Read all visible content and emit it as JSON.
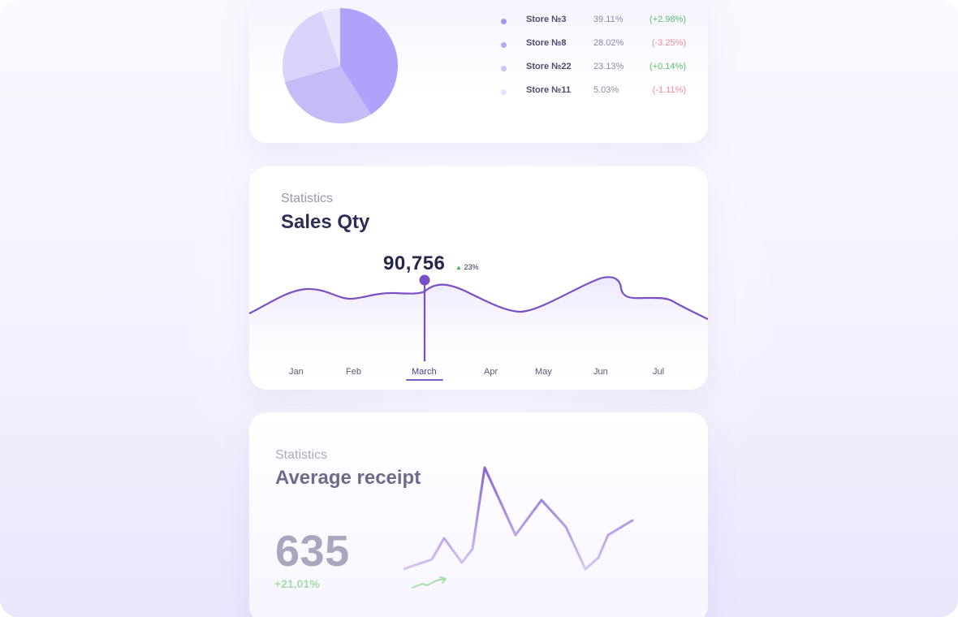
{
  "pie_card": {
    "chart_data": {
      "type": "pie",
      "slices": [
        {
          "label": "Store №3",
          "value": 39.11
        },
        {
          "label": "Store №8",
          "value": 28.02
        },
        {
          "label": "Store №22",
          "value": 23.13
        },
        {
          "label": "Store №11",
          "value": 5.03
        }
      ]
    },
    "legend": [
      {
        "name": "Store №3",
        "percent": "39.11%",
        "change": "(+2.98%)",
        "dot_color": "#a495f0",
        "change_color": "#57c06a"
      },
      {
        "name": "Store №8",
        "percent": "28.02%",
        "change": "(-3.25%)",
        "dot_color": "#b6a9f2",
        "change_color": "#ee8a9a"
      },
      {
        "name": "Store №22",
        "percent": "23.13%",
        "change": "(+0.14%)",
        "dot_color": "#cdc4f6",
        "change_color": "#57c06a"
      },
      {
        "name": "Store №11",
        "percent": "5.03%",
        "change": "(-1.11%)",
        "dot_color": "#e7e3fb",
        "change_color": "#ee8a9a"
      }
    ],
    "colors": [
      "#b0a2fa",
      "#c6bbf7",
      "#d9d2f9",
      "#eae7fb"
    ]
  },
  "sales_card": {
    "subtitle": "Statistics",
    "title": "Sales Qty",
    "peak_value": "90,756",
    "peak_change": "23%",
    "months": [
      "Jan",
      "Feb",
      "March",
      "Apr",
      "May",
      "Jun",
      "Jul"
    ],
    "active_month": "March",
    "line_color": "#7b4fc4",
    "chart_data": {
      "type": "line",
      "categories": [
        "Jan",
        "Feb",
        "March",
        "Apr",
        "May",
        "Jun",
        "Jul"
      ],
      "highlighted": {
        "category": "March",
        "value": 90756
      }
    }
  },
  "avg_card": {
    "subtitle": "Statistics",
    "title": "Average receipt",
    "value": "635",
    "change": "+21.01%",
    "trend_icon": "trend-up-icon",
    "chart_data": {
      "type": "line",
      "series": [
        {
          "values": [
            10,
            22,
            48,
            18,
            35,
            135,
            52,
            95,
            62,
            10,
            24,
            52,
            70
          ]
        }
      ]
    }
  }
}
